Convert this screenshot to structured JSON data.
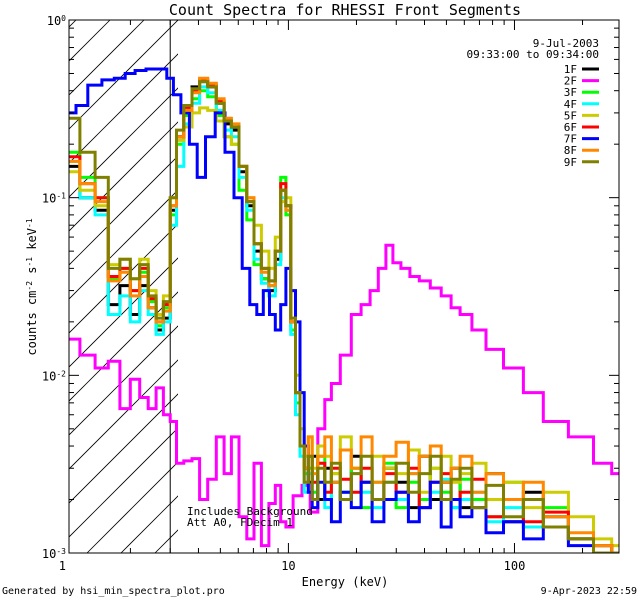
{
  "chart_data": {
    "type": "line",
    "title": "Count Spectra for RHESSI Front Segments",
    "xlabel": "Energy (keV)",
    "ylabel_main": "counts cm",
    "ylabel_exp1": "-2",
    "ylabel_mid": " s",
    "ylabel_exp2": "-1",
    "ylabel_end": " keV",
    "ylabel_exp3": "-1",
    "x_scale": "log",
    "y_scale": "log",
    "xlim": [
      1.07,
      290
    ],
    "ylim": [
      0.001,
      1.0
    ],
    "x_ticks": [
      {
        "value": 1,
        "label": "1"
      },
      {
        "value": 10,
        "label": "10"
      },
      {
        "value": 100,
        "label": "100"
      }
    ],
    "y_ticks": [
      {
        "value": 1,
        "base": "10",
        "exp": "0"
      },
      {
        "value": 0.1,
        "base": "10",
        "exp": "-1"
      },
      {
        "value": 0.01,
        "base": "10",
        "exp": "-2"
      },
      {
        "value": 0.001,
        "base": "10",
        "exp": "-3"
      }
    ],
    "hatched_region_upto_kev": 3,
    "date": "9-Jul-2003",
    "time_range": "09:33:00 to 09:34:00",
    "annotation_line1": "Includes Background",
    "annotation_line2": "Att A0, FDecim 1",
    "footer_left": "Generated by hsi_min_spectra_plot.pro",
    "footer_right": "9-Apr-2023 22:59",
    "legend_position": "top-right",
    "series": [
      {
        "name": "1F",
        "color": "#000000",
        "x": [
          1.1,
          1.3,
          1.5,
          1.7,
          1.9,
          2.1,
          2.3,
          2.5,
          2.7,
          2.9,
          3.1,
          3.3,
          3.6,
          3.9,
          4.2,
          4.6,
          5.0,
          5.4,
          5.8,
          6.3,
          6.8,
          7.3,
          7.9,
          8.5,
          9.0,
          9.5,
          10.0,
          10.5,
          11.0,
          11.5,
          12.0,
          12.5,
          13,
          14,
          15,
          16,
          18,
          20,
          22,
          25,
          28,
          32,
          36,
          40,
          45,
          50,
          55,
          60,
          70,
          80,
          100,
          120,
          150,
          200,
          250,
          290
        ],
        "y": [
          0.15,
          0.1,
          0.085,
          0.025,
          0.032,
          0.022,
          0.032,
          0.024,
          0.018,
          0.021,
          0.085,
          0.22,
          0.3,
          0.42,
          0.45,
          0.42,
          0.34,
          0.26,
          0.24,
          0.14,
          0.09,
          0.05,
          0.035,
          0.03,
          0.045,
          0.11,
          0.09,
          0.02,
          0.008,
          0.004,
          0.003,
          0.0025,
          0.0035,
          0.002,
          0.003,
          0.0025,
          0.002,
          0.0035,
          0.0025,
          0.002,
          0.003,
          0.0025,
          0.0018,
          0.0035,
          0.002,
          0.0025,
          0.003,
          0.0018,
          0.002,
          0.0028,
          0.0015,
          0.0022,
          0.0016,
          0.0012,
          0.0011,
          0.001
        ]
      },
      {
        "name": "2F",
        "color": "#ff00ff",
        "x": [
          1.1,
          1.3,
          1.5,
          1.7,
          1.9,
          2.1,
          2.3,
          2.5,
          2.7,
          2.9,
          3.1,
          3.3,
          3.6,
          3.9,
          4.2,
          4.6,
          5.0,
          5.4,
          5.8,
          6.3,
          6.8,
          7.3,
          7.9,
          8.5,
          9.0,
          9.5,
          10.0,
          11,
          12,
          13,
          14,
          15,
          16,
          18,
          20,
          22,
          24,
          26,
          28,
          30,
          33,
          36,
          40,
          45,
          50,
          55,
          60,
          70,
          80,
          100,
          120,
          150,
          200,
          250,
          290
        ],
        "y": [
          0.016,
          0.013,
          0.011,
          0.012,
          0.0065,
          0.0095,
          0.0075,
          0.0065,
          0.0085,
          0.006,
          0.0055,
          0.0032,
          0.0033,
          0.0034,
          0.002,
          0.0026,
          0.0045,
          0.0028,
          0.0045,
          0.0016,
          0.0012,
          0.0032,
          0.0011,
          0.0019,
          0.0024,
          0.0015,
          0.0014,
          0.0021,
          0.0024,
          0.0017,
          0.005,
          0.0073,
          0.009,
          0.013,
          0.022,
          0.025,
          0.03,
          0.04,
          0.054,
          0.043,
          0.04,
          0.036,
          0.034,
          0.031,
          0.028,
          0.024,
          0.022,
          0.018,
          0.014,
          0.011,
          0.008,
          0.0055,
          0.0045,
          0.0032,
          0.0028
        ]
      },
      {
        "name": "3F",
        "color": "#00ff00",
        "x": [
          1.1,
          1.3,
          1.5,
          1.7,
          1.9,
          2.1,
          2.3,
          2.5,
          2.7,
          2.9,
          3.1,
          3.3,
          3.6,
          3.9,
          4.2,
          4.6,
          5.0,
          5.4,
          5.8,
          6.3,
          6.8,
          7.3,
          7.9,
          8.5,
          9.0,
          9.5,
          10.0,
          10.5,
          11.0,
          11.5,
          12.0,
          12.5,
          13,
          14,
          15,
          16,
          18,
          20,
          22,
          25,
          28,
          32,
          36,
          40,
          45,
          50,
          55,
          60,
          70,
          80,
          100,
          120,
          150,
          200,
          250,
          290
        ],
        "y": [
          0.18,
          0.13,
          0.1,
          0.035,
          0.04,
          0.03,
          0.038,
          0.026,
          0.019,
          0.024,
          0.08,
          0.2,
          0.29,
          0.36,
          0.4,
          0.37,
          0.29,
          0.22,
          0.2,
          0.11,
          0.075,
          0.042,
          0.035,
          0.032,
          0.05,
          0.13,
          0.08,
          0.018,
          0.007,
          0.004,
          0.0028,
          0.003,
          0.0022,
          0.0035,
          0.002,
          0.0028,
          0.0022,
          0.003,
          0.0018,
          0.0025,
          0.0032,
          0.0018,
          0.0025,
          0.002,
          0.003,
          0.0022,
          0.0018,
          0.0026,
          0.002,
          0.0016,
          0.0025,
          0.0014,
          0.0018,
          0.0012,
          0.001,
          0.001
        ]
      },
      {
        "name": "4F",
        "color": "#00ffff",
        "x": [
          1.1,
          1.3,
          1.5,
          1.7,
          1.9,
          2.1,
          2.3,
          2.5,
          2.7,
          2.9,
          3.1,
          3.3,
          3.6,
          3.9,
          4.2,
          4.6,
          5.0,
          5.4,
          5.8,
          6.3,
          6.8,
          7.3,
          7.9,
          8.5,
          9.0,
          9.5,
          10.0,
          10.5,
          11.0,
          11.5,
          12.0,
          12.5,
          13,
          14,
          15,
          16,
          18,
          20,
          22,
          25,
          28,
          32,
          36,
          40,
          45,
          50,
          55,
          60,
          70,
          80,
          100,
          120,
          150,
          200,
          250,
          290
        ],
        "y": [
          0.16,
          0.1,
          0.08,
          0.022,
          0.028,
          0.02,
          0.03,
          0.022,
          0.017,
          0.02,
          0.07,
          0.15,
          0.26,
          0.34,
          0.42,
          0.39,
          0.31,
          0.24,
          0.22,
          0.13,
          0.085,
          0.045,
          0.033,
          0.028,
          0.042,
          0.1,
          0.085,
          0.017,
          0.006,
          0.0035,
          0.0022,
          0.0028,
          0.002,
          0.0032,
          0.0018,
          0.0025,
          0.002,
          0.0028,
          0.0022,
          0.0018,
          0.0025,
          0.002,
          0.0028,
          0.0018,
          0.0022,
          0.0026,
          0.0018,
          0.002,
          0.0022,
          0.0015,
          0.0018,
          0.0014,
          0.0016,
          0.0012,
          0.0011,
          0.001
        ]
      },
      {
        "name": "5F",
        "color": "#cccc00",
        "x": [
          1.1,
          1.3,
          1.5,
          1.7,
          1.9,
          2.1,
          2.3,
          2.5,
          2.7,
          2.9,
          3.1,
          3.3,
          3.6,
          3.9,
          4.2,
          4.6,
          5.0,
          5.4,
          5.8,
          6.3,
          6.8,
          7.3,
          7.9,
          8.5,
          9.0,
          9.5,
          10.0,
          10.5,
          11.0,
          11.5,
          12.0,
          12.5,
          13,
          14,
          15,
          16,
          18,
          20,
          22,
          25,
          28,
          32,
          36,
          40,
          45,
          50,
          55,
          60,
          70,
          80,
          100,
          120,
          150,
          200,
          250,
          290
        ],
        "y": [
          0.14,
          0.11,
          0.09,
          0.042,
          0.045,
          0.035,
          0.045,
          0.03,
          0.022,
          0.028,
          0.1,
          0.21,
          0.25,
          0.3,
          0.32,
          0.31,
          0.27,
          0.22,
          0.2,
          0.15,
          0.1,
          0.07,
          0.05,
          0.04,
          0.06,
          0.095,
          0.1,
          0.03,
          0.01,
          0.005,
          0.0035,
          0.0045,
          0.003,
          0.004,
          0.0035,
          0.0028,
          0.0045,
          0.003,
          0.0025,
          0.0035,
          0.003,
          0.0028,
          0.0038,
          0.0022,
          0.003,
          0.0035,
          0.0025,
          0.0028,
          0.0032,
          0.002,
          0.0025,
          0.0018,
          0.0022,
          0.0016,
          0.0012,
          0.0011
        ]
      },
      {
        "name": "6F",
        "color": "#ff0000",
        "x": [
          1.1,
          1.3,
          1.5,
          1.7,
          1.9,
          2.1,
          2.3,
          2.5,
          2.7,
          2.9,
          3.1,
          3.3,
          3.6,
          3.9,
          4.2,
          4.6,
          5.0,
          5.4,
          5.8,
          6.3,
          6.8,
          7.3,
          7.9,
          8.5,
          9.0,
          9.5,
          10.0,
          10.5,
          11.0,
          11.5,
          12.0,
          12.5,
          13,
          14,
          15,
          16,
          18,
          20,
          22,
          25,
          28,
          32,
          36,
          40,
          45,
          50,
          55,
          60,
          70,
          80,
          100,
          120,
          150,
          200,
          250,
          290
        ],
        "y": [
          0.17,
          0.12,
          0.1,
          0.036,
          0.04,
          0.03,
          0.04,
          0.027,
          0.02,
          0.025,
          0.09,
          0.22,
          0.32,
          0.4,
          0.46,
          0.43,
          0.35,
          0.27,
          0.25,
          0.15,
          0.095,
          0.055,
          0.04,
          0.034,
          0.05,
          0.12,
          0.09,
          0.02,
          0.008,
          0.004,
          0.003,
          0.0035,
          0.0025,
          0.0032,
          0.0022,
          0.003,
          0.0026,
          0.0022,
          0.003,
          0.002,
          0.0028,
          0.0022,
          0.003,
          0.0018,
          0.0025,
          0.0028,
          0.002,
          0.0022,
          0.0026,
          0.0016,
          0.002,
          0.0015,
          0.0017,
          0.0012,
          0.0011,
          0.001
        ]
      },
      {
        "name": "7F",
        "color": "#0000ff",
        "x": [
          1.1,
          1.2,
          1.4,
          1.6,
          1.8,
          2.0,
          2.2,
          2.5,
          2.8,
          3.0,
          3.2,
          3.5,
          3.8,
          4.1,
          4.5,
          5.0,
          5.5,
          6.0,
          6.5,
          7.0,
          7.5,
          8.0,
          8.5,
          9.0,
          9.5,
          10.0,
          10.5,
          11.0,
          11.5,
          12.0,
          12.5,
          13,
          14,
          15,
          16,
          18,
          20,
          22,
          25,
          28,
          32,
          36,
          40,
          45,
          50,
          55,
          60,
          70,
          80,
          100,
          120,
          150,
          200,
          250,
          290
        ],
        "y": [
          0.3,
          0.33,
          0.43,
          0.46,
          0.47,
          0.5,
          0.52,
          0.53,
          0.53,
          0.47,
          0.38,
          0.3,
          0.2,
          0.13,
          0.22,
          0.3,
          0.18,
          0.1,
          0.04,
          0.025,
          0.022,
          0.03,
          0.022,
          0.018,
          0.025,
          0.04,
          0.03,
          0.02,
          0.008,
          0.004,
          0.0022,
          0.0018,
          0.0025,
          0.002,
          0.0015,
          0.0022,
          0.0018,
          0.0025,
          0.0015,
          0.002,
          0.0022,
          0.0015,
          0.0018,
          0.0025,
          0.0014,
          0.002,
          0.0016,
          0.0018,
          0.0013,
          0.0015,
          0.0012,
          0.0014,
          0.0011,
          0.001,
          0.001
        ]
      },
      {
        "name": "8F",
        "color": "#ff8800",
        "x": [
          1.1,
          1.3,
          1.5,
          1.7,
          1.9,
          2.1,
          2.3,
          2.5,
          2.7,
          2.9,
          3.1,
          3.3,
          3.6,
          3.9,
          4.2,
          4.6,
          5.0,
          5.4,
          5.8,
          6.3,
          6.8,
          7.3,
          7.9,
          8.5,
          9.0,
          9.5,
          10.0,
          10.5,
          11.0,
          11.5,
          12.0,
          12.5,
          13,
          14,
          15,
          16,
          18,
          20,
          22,
          25,
          28,
          32,
          36,
          40,
          45,
          50,
          55,
          60,
          70,
          80,
          100,
          120,
          150,
          200,
          250,
          290
        ],
        "y": [
          0.16,
          0.12,
          0.095,
          0.034,
          0.038,
          0.028,
          0.036,
          0.024,
          0.02,
          0.023,
          0.09,
          0.22,
          0.31,
          0.39,
          0.47,
          0.44,
          0.36,
          0.28,
          0.26,
          0.15,
          0.1,
          0.055,
          0.038,
          0.032,
          0.05,
          0.11,
          0.085,
          0.02,
          0.008,
          0.004,
          0.003,
          0.0045,
          0.0028,
          0.0035,
          0.0045,
          0.0025,
          0.0038,
          0.003,
          0.0045,
          0.0025,
          0.0035,
          0.0042,
          0.0028,
          0.0035,
          0.004,
          0.0025,
          0.003,
          0.0035,
          0.0022,
          0.0028,
          0.002,
          0.0025,
          0.0016,
          0.0013,
          0.0011,
          0.001
        ]
      },
      {
        "name": "9F",
        "color": "#808000",
        "x": [
          1.1,
          1.3,
          1.5,
          1.7,
          1.9,
          2.1,
          2.3,
          2.5,
          2.7,
          2.9,
          3.1,
          3.3,
          3.6,
          3.9,
          4.2,
          4.6,
          5.0,
          5.4,
          5.8,
          6.3,
          6.8,
          7.3,
          7.9,
          8.5,
          9.0,
          9.5,
          10.0,
          10.5,
          11.0,
          11.5,
          12.0,
          12.5,
          13,
          14,
          15,
          16,
          18,
          20,
          22,
          25,
          28,
          32,
          36,
          40,
          45,
          50,
          55,
          60,
          70,
          80,
          100,
          120,
          150,
          200,
          250,
          290
        ],
        "y": [
          0.28,
          0.18,
          0.13,
          0.04,
          0.045,
          0.035,
          0.042,
          0.028,
          0.021,
          0.026,
          0.1,
          0.24,
          0.33,
          0.41,
          0.45,
          0.42,
          0.34,
          0.27,
          0.25,
          0.15,
          0.095,
          0.055,
          0.04,
          0.034,
          0.05,
          0.11,
          0.09,
          0.021,
          0.008,
          0.004,
          0.0025,
          0.0035,
          0.002,
          0.003,
          0.0025,
          0.0032,
          0.002,
          0.0028,
          0.0035,
          0.002,
          0.0025,
          0.0032,
          0.0022,
          0.0028,
          0.0035,
          0.002,
          0.0026,
          0.003,
          0.0018,
          0.0024,
          0.0016,
          0.002,
          0.0014,
          0.0012,
          0.001,
          0.001
        ]
      }
    ]
  }
}
